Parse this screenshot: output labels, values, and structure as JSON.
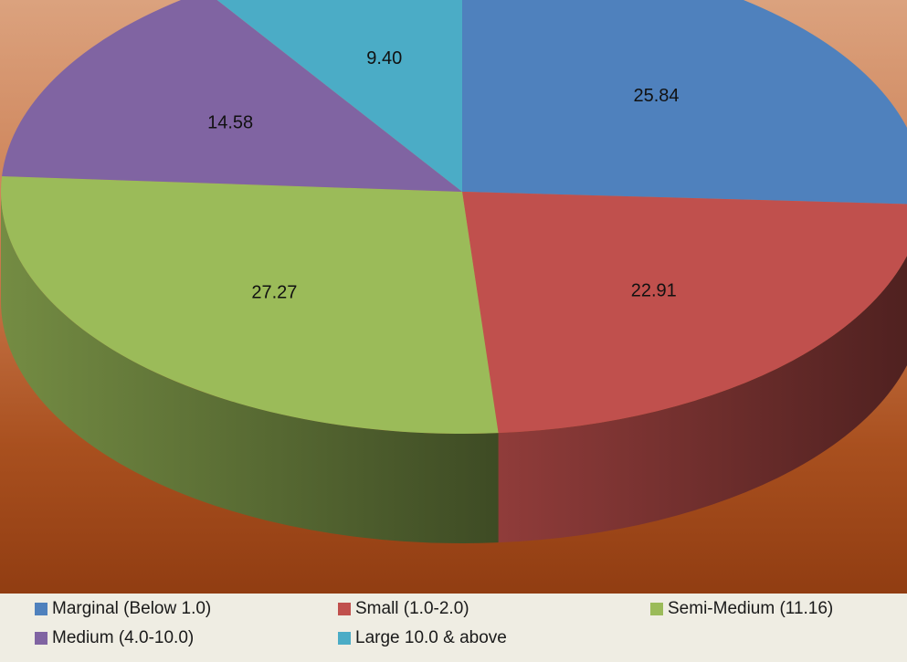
{
  "chart_data": {
    "type": "pie",
    "style": "3d",
    "slices": [
      {
        "label": "Marginal (Below 1.0)",
        "value": 25.84,
        "display": "25.84",
        "color": "#4f81bd"
      },
      {
        "label": "Small (1.0-2.0)",
        "value": 22.91,
        "display": "22.91",
        "color": "#c0504d"
      },
      {
        "label": "Semi-Medium (11.16)",
        "value": 27.27,
        "display": "27.27",
        "color": "#9bbb59"
      },
      {
        "label": "Medium (4.0-10.0)",
        "value": 14.58,
        "display": "14.58",
        "color": "#8064a2"
      },
      {
        "label": "Large 10.0 & above",
        "value": 9.4,
        "display": "9.40",
        "color": "#4bacc6"
      }
    ],
    "legend_position": "bottom"
  }
}
